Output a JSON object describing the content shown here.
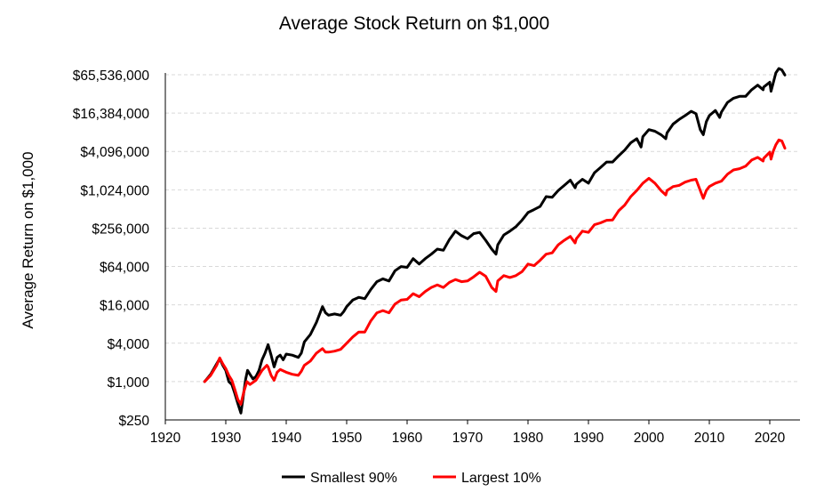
{
  "chart_data": {
    "type": "line",
    "title": "Average Stock Return on $1,000",
    "xlabel": "",
    "ylabel": "Average Return on $1,000",
    "yscale": "log",
    "xlim": [
      1920,
      2025
    ],
    "ylim": [
      250,
      65536000
    ],
    "x_ticks": [
      1920,
      1930,
      1940,
      1950,
      1960,
      1970,
      1980,
      1990,
      2000,
      2010,
      2020
    ],
    "x_tick_labels": [
      "1920",
      "1930",
      "1940",
      "1950",
      "1960",
      "1970",
      "1980",
      "1990",
      "2000",
      "2010",
      "2020"
    ],
    "y_ticks": [
      250,
      1000,
      4000,
      16000,
      64000,
      256000,
      1024000,
      4096000,
      16384000,
      65536000
    ],
    "y_tick_labels": [
      "$250",
      "$1,000",
      "$4,000",
      "$16,000",
      "$64,000",
      "$256,000",
      "$1,024,000",
      "$4,096,000",
      "$16,384,000",
      "$65,536,000"
    ],
    "grid": "horizontal dashed",
    "legend_position": "bottom",
    "series": [
      {
        "name": "Smallest 90%",
        "color": "#000000",
        "points": [
          [
            1926.5,
            1000
          ],
          [
            1927.5,
            1300
          ],
          [
            1928.5,
            1900
          ],
          [
            1929.0,
            2300
          ],
          [
            1929.5,
            1800
          ],
          [
            1930.0,
            1500
          ],
          [
            1930.5,
            1000
          ],
          [
            1931.0,
            900
          ],
          [
            1931.5,
            650
          ],
          [
            1932.0,
            450
          ],
          [
            1932.5,
            320
          ],
          [
            1932.8,
            500
          ],
          [
            1933.0,
            700
          ],
          [
            1933.3,
            1100
          ],
          [
            1933.6,
            1500
          ],
          [
            1934.0,
            1300
          ],
          [
            1934.5,
            1100
          ],
          [
            1935.0,
            1200
          ],
          [
            1935.5,
            1500
          ],
          [
            1936.0,
            2200
          ],
          [
            1936.5,
            2800
          ],
          [
            1937.0,
            3800
          ],
          [
            1937.5,
            2600
          ],
          [
            1938.0,
            1700
          ],
          [
            1938.5,
            2400
          ],
          [
            1939.0,
            2600
          ],
          [
            1939.5,
            2200
          ],
          [
            1940.0,
            2700
          ],
          [
            1941.0,
            2600
          ],
          [
            1942.0,
            2400
          ],
          [
            1942.5,
            2800
          ],
          [
            1943.0,
            4200
          ],
          [
            1944.0,
            5500
          ],
          [
            1945.0,
            8500
          ],
          [
            1946.0,
            15000
          ],
          [
            1946.5,
            12000
          ],
          [
            1947.0,
            11000
          ],
          [
            1948.0,
            11500
          ],
          [
            1949.0,
            11000
          ],
          [
            1949.5,
            12500
          ],
          [
            1950.0,
            15000
          ],
          [
            1951.0,
            19000
          ],
          [
            1952.0,
            21000
          ],
          [
            1953.0,
            20000
          ],
          [
            1954.0,
            28000
          ],
          [
            1955.0,
            37000
          ],
          [
            1956.0,
            41000
          ],
          [
            1957.0,
            38000
          ],
          [
            1958.0,
            55000
          ],
          [
            1959.0,
            64000
          ],
          [
            1960.0,
            62000
          ],
          [
            1961.0,
            85000
          ],
          [
            1962.0,
            70000
          ],
          [
            1963.0,
            85000
          ],
          [
            1964.0,
            100000
          ],
          [
            1965.0,
            120000
          ],
          [
            1966.0,
            115000
          ],
          [
            1967.0,
            170000
          ],
          [
            1968.0,
            230000
          ],
          [
            1969.0,
            195000
          ],
          [
            1970.0,
            175000
          ],
          [
            1971.0,
            210000
          ],
          [
            1972.0,
            220000
          ],
          [
            1973.0,
            165000
          ],
          [
            1974.0,
            120000
          ],
          [
            1974.7,
            100000
          ],
          [
            1975.0,
            140000
          ],
          [
            1976.0,
            200000
          ],
          [
            1977.0,
            230000
          ],
          [
            1978.0,
            270000
          ],
          [
            1979.0,
            340000
          ],
          [
            1980.0,
            450000
          ],
          [
            1981.0,
            500000
          ],
          [
            1982.0,
            560000
          ],
          [
            1983.0,
            800000
          ],
          [
            1984.0,
            780000
          ],
          [
            1985.0,
            1000000
          ],
          [
            1986.0,
            1200000
          ],
          [
            1987.0,
            1450000
          ],
          [
            1987.8,
            1100000
          ],
          [
            1988.0,
            1250000
          ],
          [
            1989.0,
            1500000
          ],
          [
            1990.0,
            1300000
          ],
          [
            1991.0,
            1900000
          ],
          [
            1992.0,
            2300000
          ],
          [
            1993.0,
            2800000
          ],
          [
            1994.0,
            2800000
          ],
          [
            1995.0,
            3500000
          ],
          [
            1996.0,
            4300000
          ],
          [
            1997.0,
            5600000
          ],
          [
            1998.0,
            6500000
          ],
          [
            1998.7,
            4800000
          ],
          [
            1999.0,
            7000000
          ],
          [
            2000.0,
            9000000
          ],
          [
            2001.0,
            8500000
          ],
          [
            2002.0,
            7500000
          ],
          [
            2002.8,
            6500000
          ],
          [
            2003.0,
            8000000
          ],
          [
            2004.0,
            11000000
          ],
          [
            2005.0,
            13000000
          ],
          [
            2006.0,
            15000000
          ],
          [
            2007.0,
            17500000
          ],
          [
            2007.8,
            16000000
          ],
          [
            2008.5,
            9000000
          ],
          [
            2009.0,
            7500000
          ],
          [
            2009.5,
            12000000
          ],
          [
            2010.0,
            15000000
          ],
          [
            2011.0,
            18000000
          ],
          [
            2011.7,
            14000000
          ],
          [
            2012.0,
            17000000
          ],
          [
            2013.0,
            24000000
          ],
          [
            2014.0,
            28000000
          ],
          [
            2015.0,
            30000000
          ],
          [
            2016.0,
            30000000
          ],
          [
            2017.0,
            38000000
          ],
          [
            2018.0,
            45000000
          ],
          [
            2018.9,
            38000000
          ],
          [
            2019.0,
            42000000
          ],
          [
            2020.0,
            50000000
          ],
          [
            2020.2,
            36000000
          ],
          [
            2020.6,
            50000000
          ],
          [
            2021.0,
            70000000
          ],
          [
            2021.5,
            82000000
          ],
          [
            2022.0,
            78000000
          ],
          [
            2022.5,
            65000000
          ]
        ]
      },
      {
        "name": "Largest 10%",
        "color": "#ff0000",
        "points": [
          [
            1926.5,
            1000
          ],
          [
            1927.5,
            1250
          ],
          [
            1928.5,
            1800
          ],
          [
            1929.0,
            2350
          ],
          [
            1929.5,
            1900
          ],
          [
            1930.0,
            1600
          ],
          [
            1930.5,
            1250
          ],
          [
            1931.0,
            1050
          ],
          [
            1931.5,
            750
          ],
          [
            1932.0,
            520
          ],
          [
            1932.5,
            440
          ],
          [
            1932.8,
            580
          ],
          [
            1933.0,
            700
          ],
          [
            1933.5,
            1000
          ],
          [
            1934.0,
            900
          ],
          [
            1935.0,
            1050
          ],
          [
            1936.0,
            1500
          ],
          [
            1936.8,
            1800
          ],
          [
            1937.0,
            1700
          ],
          [
            1937.5,
            1250
          ],
          [
            1938.0,
            1050
          ],
          [
            1938.5,
            1400
          ],
          [
            1939.0,
            1550
          ],
          [
            1940.0,
            1400
          ],
          [
            1941.0,
            1300
          ],
          [
            1942.0,
            1250
          ],
          [
            1942.5,
            1450
          ],
          [
            1943.0,
            1800
          ],
          [
            1944.0,
            2100
          ],
          [
            1945.0,
            2800
          ],
          [
            1946.0,
            3300
          ],
          [
            1946.5,
            2900
          ],
          [
            1947.0,
            2900
          ],
          [
            1948.0,
            3000
          ],
          [
            1949.0,
            3200
          ],
          [
            1950.0,
            4000
          ],
          [
            1951.0,
            5000
          ],
          [
            1952.0,
            6000
          ],
          [
            1953.0,
            6000
          ],
          [
            1954.0,
            9000
          ],
          [
            1955.0,
            12000
          ],
          [
            1956.0,
            13000
          ],
          [
            1957.0,
            12000
          ],
          [
            1958.0,
            16500
          ],
          [
            1959.0,
            19000
          ],
          [
            1960.0,
            19500
          ],
          [
            1961.0,
            24000
          ],
          [
            1962.0,
            21500
          ],
          [
            1963.0,
            26000
          ],
          [
            1964.0,
            30000
          ],
          [
            1965.0,
            33000
          ],
          [
            1966.0,
            30000
          ],
          [
            1967.0,
            36000
          ],
          [
            1968.0,
            40000
          ],
          [
            1969.0,
            37000
          ],
          [
            1970.0,
            38000
          ],
          [
            1971.0,
            44000
          ],
          [
            1972.0,
            52000
          ],
          [
            1973.0,
            45000
          ],
          [
            1974.0,
            30000
          ],
          [
            1974.7,
            26000
          ],
          [
            1975.0,
            38000
          ],
          [
            1976.0,
            46000
          ],
          [
            1977.0,
            43000
          ],
          [
            1978.0,
            46000
          ],
          [
            1979.0,
            53000
          ],
          [
            1980.0,
            70000
          ],
          [
            1981.0,
            66000
          ],
          [
            1982.0,
            80000
          ],
          [
            1983.0,
            100000
          ],
          [
            1984.0,
            105000
          ],
          [
            1985.0,
            140000
          ],
          [
            1986.0,
            165000
          ],
          [
            1987.0,
            190000
          ],
          [
            1987.8,
            150000
          ],
          [
            1988.0,
            175000
          ],
          [
            1989.0,
            230000
          ],
          [
            1990.0,
            220000
          ],
          [
            1991.0,
            290000
          ],
          [
            1992.0,
            310000
          ],
          [
            1993.0,
            340000
          ],
          [
            1994.0,
            345000
          ],
          [
            1995.0,
            480000
          ],
          [
            1996.0,
            590000
          ],
          [
            1997.0,
            800000
          ],
          [
            1998.0,
            1000000
          ],
          [
            1999.0,
            1300000
          ],
          [
            2000.0,
            1550000
          ],
          [
            2001.0,
            1300000
          ],
          [
            2002.0,
            1000000
          ],
          [
            2002.8,
            850000
          ],
          [
            2003.0,
            1000000
          ],
          [
            2004.0,
            1150000
          ],
          [
            2005.0,
            1200000
          ],
          [
            2006.0,
            1350000
          ],
          [
            2007.0,
            1450000
          ],
          [
            2007.8,
            1500000
          ],
          [
            2008.5,
            1000000
          ],
          [
            2009.0,
            750000
          ],
          [
            2009.5,
            1000000
          ],
          [
            2010.0,
            1150000
          ],
          [
            2011.0,
            1300000
          ],
          [
            2012.0,
            1400000
          ],
          [
            2013.0,
            1800000
          ],
          [
            2014.0,
            2100000
          ],
          [
            2015.0,
            2200000
          ],
          [
            2016.0,
            2400000
          ],
          [
            2017.0,
            3000000
          ],
          [
            2018.0,
            3300000
          ],
          [
            2018.9,
            2900000
          ],
          [
            2019.0,
            3200000
          ],
          [
            2020.0,
            4000000
          ],
          [
            2020.2,
            3100000
          ],
          [
            2020.6,
            4200000
          ],
          [
            2021.0,
            5200000
          ],
          [
            2021.5,
            6200000
          ],
          [
            2022.0,
            6000000
          ],
          [
            2022.5,
            4600000
          ]
        ]
      }
    ]
  }
}
